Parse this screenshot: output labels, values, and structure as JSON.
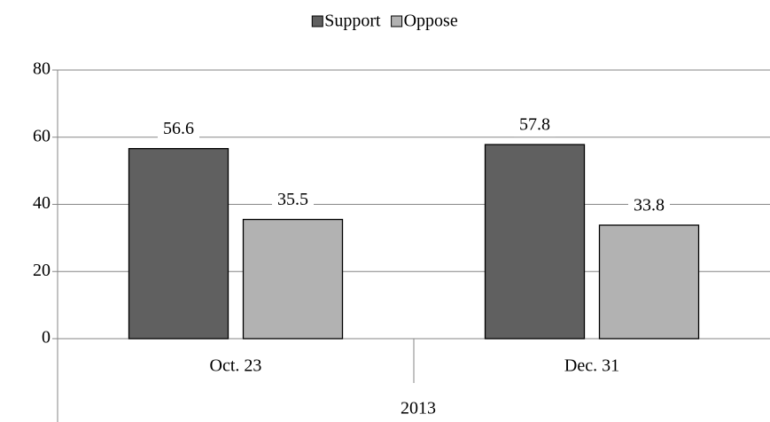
{
  "chart_data": {
    "type": "bar",
    "categories": [
      "Oct. 23",
      "Dec. 31"
    ],
    "category_group": "2013",
    "series": [
      {
        "name": "Support",
        "color": "#606060",
        "values": [
          56.6,
          57.8
        ]
      },
      {
        "name": "Oppose",
        "color": "#b2b2b2",
        "values": [
          35.5,
          33.8
        ]
      }
    ],
    "ylim": [
      0,
      80
    ],
    "yticks": [
      0,
      20,
      40,
      60,
      80
    ],
    "grid": true,
    "legend": "top"
  }
}
